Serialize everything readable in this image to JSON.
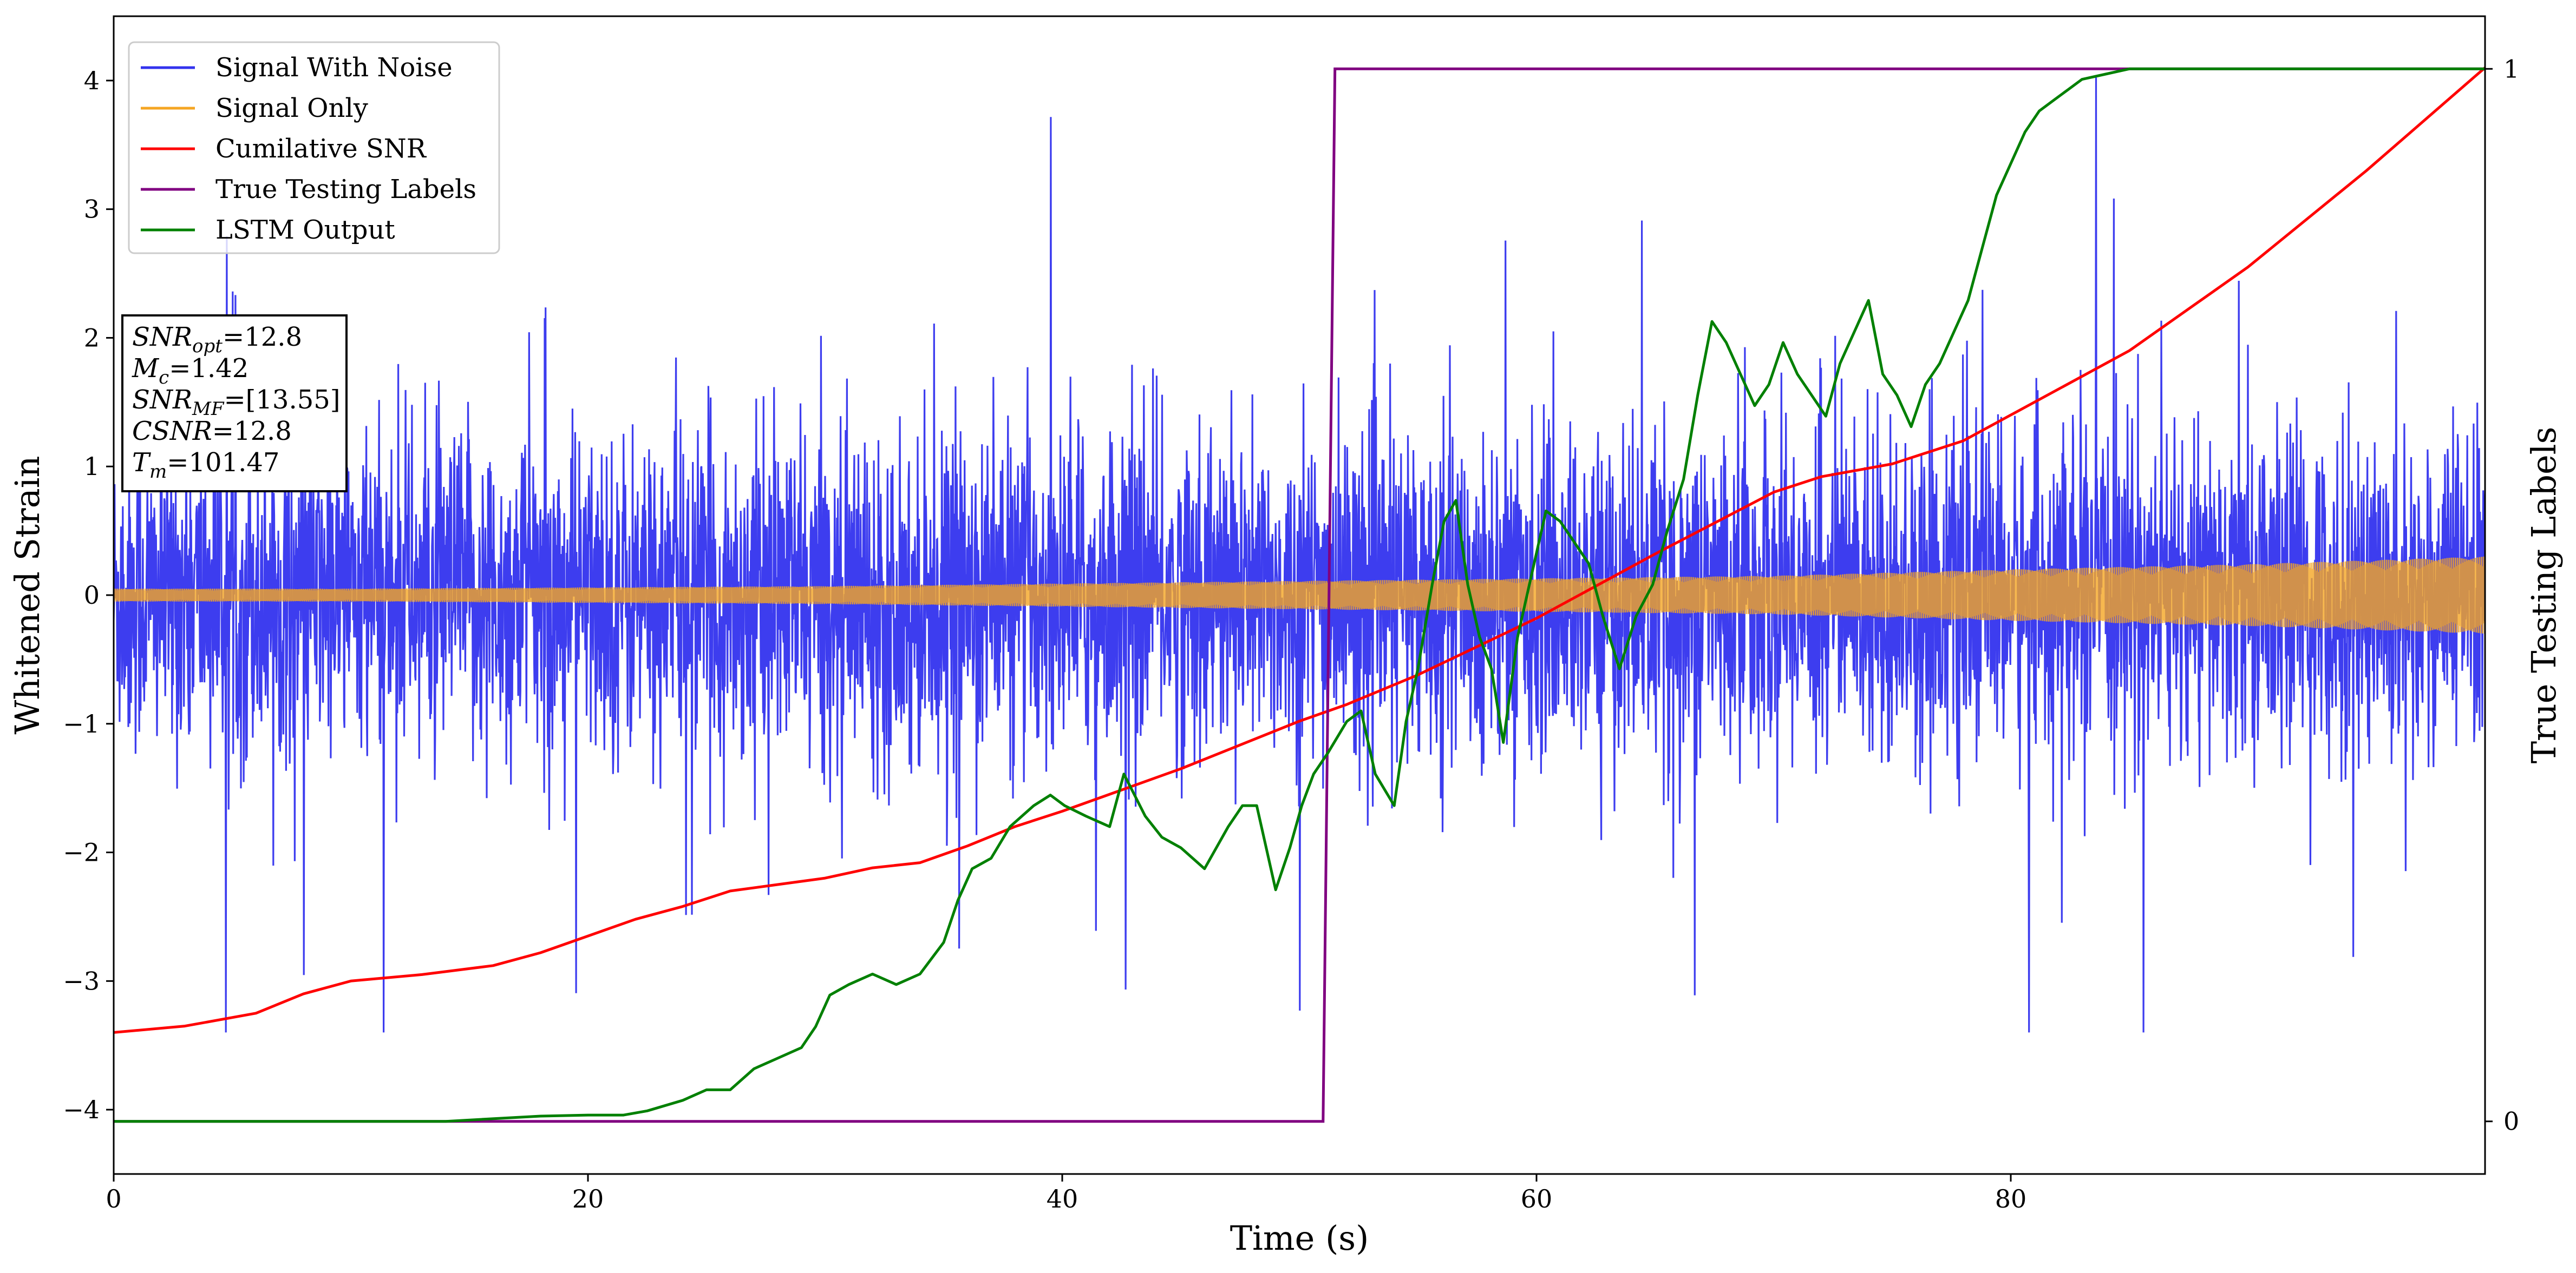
{
  "chart_data": {
    "type": "line",
    "xlabel": "Time (s)",
    "ylabel": "Whitened Strain",
    "ylabel_right": "True Testing Labels",
    "xlim": [
      0,
      100
    ],
    "ylim": [
      -4.5,
      4.5
    ],
    "ylim_right": [
      -0.05,
      1.05
    ],
    "x_ticks": [
      0,
      20,
      40,
      60,
      80
    ],
    "y_ticks": [
      -4,
      -3,
      -2,
      -1,
      0,
      1,
      2,
      3,
      4
    ],
    "y_ticks_right": [
      0,
      1
    ],
    "grid": false,
    "legend_position": "top-left",
    "series": [
      {
        "name": "Signal With Noise",
        "axis": "left",
        "color": "#3333ee",
        "note_range": [
          -3.4,
          4.1
        ]
      },
      {
        "name": "Signal Only",
        "axis": "left",
        "color": "#f5a623",
        "envelope": {
          "x": [
            0,
            10,
            20,
            30,
            40,
            50,
            60,
            70,
            80,
            90,
            100
          ],
          "amp": [
            0.05,
            0.05,
            0.06,
            0.07,
            0.09,
            0.11,
            0.13,
            0.15,
            0.2,
            0.24,
            0.3
          ]
        }
      },
      {
        "name": "Cumilative SNR",
        "axis": "left",
        "color": "#ff0000",
        "x": [
          0,
          3,
          6,
          8,
          10,
          13,
          16,
          18,
          20,
          22,
          24,
          26,
          28,
          30,
          32,
          34,
          36,
          38,
          40,
          45,
          50,
          52,
          55,
          60,
          65,
          70,
          72,
          75,
          78,
          80,
          85,
          90,
          95,
          100
        ],
        "y": [
          -3.4,
          -3.35,
          -3.25,
          -3.1,
          -3.0,
          -2.95,
          -2.88,
          -2.78,
          -2.65,
          -2.52,
          -2.42,
          -2.3,
          -2.25,
          -2.2,
          -2.12,
          -2.08,
          -1.95,
          -1.8,
          -1.68,
          -1.35,
          -0.98,
          -0.85,
          -0.62,
          -0.18,
          0.32,
          0.8,
          0.92,
          1.02,
          1.2,
          1.4,
          1.9,
          2.55,
          3.3,
          4.1
        ]
      },
      {
        "name": "True Testing Labels",
        "axis": "right",
        "color": "#800080",
        "x": [
          0,
          51.0,
          51.5,
          100
        ],
        "y": [
          0,
          0,
          1,
          1
        ]
      },
      {
        "name": "LSTM Output",
        "axis": "right",
        "color": "#008000",
        "x": [
          0,
          14,
          18,
          20,
          21.5,
          22.5,
          24,
          25,
          26,
          27,
          28,
          29,
          29.6,
          30.2,
          31,
          32,
          33,
          34,
          35,
          35.6,
          36.2,
          37,
          37.8,
          38.8,
          39.5,
          40.1,
          41,
          42,
          42.6,
          43.5,
          44.2,
          45,
          46,
          47,
          47.6,
          48.2,
          49,
          49.6,
          50.1,
          50.6,
          51.2,
          52,
          52.6,
          53.2,
          54,
          54.5,
          55,
          55.6,
          56.1,
          56.6,
          57.1,
          57.6,
          58.1,
          58.6,
          59.2,
          59.8,
          60.4,
          61,
          61.6,
          62.2,
          62.8,
          63.5,
          64.2,
          64.9,
          65.5,
          66.2,
          66.8,
          67.4,
          68,
          68.6,
          69.2,
          69.8,
          70.4,
          71,
          71.6,
          72.2,
          72.8,
          73.4,
          74,
          74.6,
          75.2,
          75.8,
          76.4,
          77,
          77.6,
          78.2,
          78.8,
          79.4,
          80,
          80.6,
          81.2,
          81.8,
          82.4,
          83,
          84,
          85,
          86,
          88,
          90,
          100
        ],
        "y": [
          0,
          0,
          0.005,
          0.006,
          0.006,
          0.01,
          0.02,
          0.03,
          0.03,
          0.05,
          0.06,
          0.07,
          0.09,
          0.12,
          0.13,
          0.14,
          0.13,
          0.14,
          0.17,
          0.21,
          0.24,
          0.25,
          0.28,
          0.3,
          0.31,
          0.3,
          0.29,
          0.28,
          0.33,
          0.29,
          0.27,
          0.26,
          0.24,
          0.28,
          0.3,
          0.3,
          0.22,
          0.26,
          0.3,
          0.33,
          0.35,
          0.38,
          0.39,
          0.33,
          0.3,
          0.38,
          0.43,
          0.51,
          0.57,
          0.59,
          0.51,
          0.46,
          0.43,
          0.36,
          0.46,
          0.52,
          0.58,
          0.57,
          0.55,
          0.53,
          0.48,
          0.43,
          0.48,
          0.51,
          0.56,
          0.61,
          0.69,
          0.76,
          0.74,
          0.71,
          0.68,
          0.7,
          0.74,
          0.71,
          0.69,
          0.67,
          0.72,
          0.75,
          0.78,
          0.71,
          0.69,
          0.66,
          0.7,
          0.72,
          0.75,
          0.78,
          0.83,
          0.88,
          0.91,
          0.94,
          0.96,
          0.97,
          0.98,
          0.99,
          0.995,
          1.0,
          1.0,
          1.0,
          1.0,
          1.0
        ]
      }
    ],
    "annotation": {
      "lines": [
        {
          "main": "SNR",
          "sub": "opt",
          "value": "=12.8"
        },
        {
          "main": "M",
          "sub": "c",
          "value": "=1.42"
        },
        {
          "main": "SNR",
          "sub": "MF",
          "value": "=[13.55]"
        },
        {
          "main": "CSNR",
          "sub": "",
          "value": "=12.8"
        },
        {
          "main": "T",
          "sub": "m",
          "value": "=101.47"
        }
      ]
    }
  }
}
